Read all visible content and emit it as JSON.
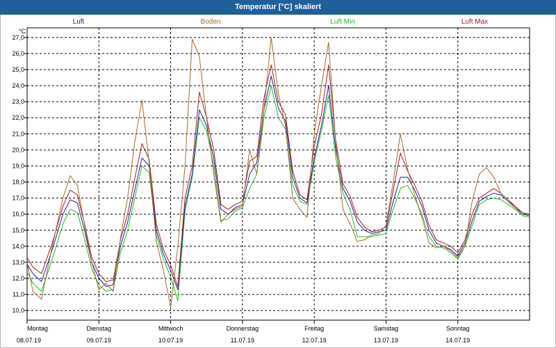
{
  "window": {
    "title": "Temperatur [°C] skaliert"
  },
  "chart_data": {
    "type": "line",
    "title": "Temperatur [°C] skaliert",
    "ylabel": "°C",
    "ylim": [
      9.4,
      27.6
    ],
    "yticks": [
      "10,0",
      "11,0",
      "12,0",
      "13,0",
      "14,0",
      "15,0",
      "16,0",
      "17,0",
      "18,0",
      "19,0",
      "20,0",
      "21,0",
      "22,0",
      "23,0",
      "24,0",
      "25,0",
      "26,0",
      "27,0"
    ],
    "x_range": [
      0,
      7
    ],
    "grid": true,
    "days": [
      {
        "day": "Montag",
        "date": "08.07.19"
      },
      {
        "day": "Dienstag",
        "date": "09.07.19"
      },
      {
        "day": "Mittwoch",
        "date": "10.07.19"
      },
      {
        "day": "Donnerstag",
        "date": "11.07.19"
      },
      {
        "day": "Freitag",
        "date": "12.07.19"
      },
      {
        "day": "Samstag",
        "date": "13.07.19"
      },
      {
        "day": "Sonntag",
        "date": "14.07.19"
      }
    ],
    "series": [
      {
        "name": "Luft",
        "color": "#1c1ca0",
        "x": [
          0,
          0.08,
          0.2,
          0.35,
          0.5,
          0.6,
          0.7,
          0.8,
          0.9,
          1.0,
          1.1,
          1.2,
          1.3,
          1.4,
          1.5,
          1.6,
          1.7,
          1.8,
          1.9,
          2.0,
          2.1,
          2.2,
          2.3,
          2.4,
          2.5,
          2.6,
          2.7,
          2.8,
          2.9,
          3.0,
          3.1,
          3.2,
          3.3,
          3.4,
          3.5,
          3.6,
          3.7,
          3.8,
          3.9,
          4.0,
          4.1,
          4.2,
          4.3,
          4.4,
          4.5,
          4.6,
          4.7,
          4.8,
          4.9,
          5.0,
          5.1,
          5.2,
          5.3,
          5.4,
          5.5,
          5.6,
          5.7,
          5.8,
          5.9,
          6.0,
          6.1,
          6.2,
          6.3,
          6.4,
          6.5,
          6.6,
          6.7,
          6.8,
          6.9,
          7.0
        ],
        "y": [
          12.9,
          12.3,
          11.8,
          13.8,
          16.0,
          16.9,
          16.7,
          15.0,
          13.0,
          12.0,
          11.5,
          11.6,
          14.0,
          15.5,
          17.5,
          19.5,
          19.0,
          15.0,
          13.5,
          12.5,
          11.3,
          16.5,
          18.5,
          22.5,
          21.5,
          19.5,
          16.3,
          16.0,
          16.4,
          16.6,
          18.5,
          19.2,
          22.5,
          24.6,
          22.6,
          21.8,
          18.3,
          17.0,
          16.7,
          19.5,
          21.5,
          24.0,
          20.0,
          17.6,
          16.8,
          15.5,
          15.0,
          14.8,
          14.9,
          15.0,
          16.8,
          18.3,
          18.3,
          17.5,
          16.5,
          15.0,
          14.2,
          14.0,
          13.8,
          13.4,
          14.2,
          15.6,
          16.8,
          17.1,
          17.3,
          17.2,
          16.8,
          16.4,
          16.0,
          15.9
        ]
      },
      {
        "name": "Boden",
        "color": "#a26a2e",
        "x": [
          0,
          0.08,
          0.2,
          0.35,
          0.5,
          0.6,
          0.7,
          0.8,
          0.9,
          1.0,
          1.1,
          1.2,
          1.3,
          1.4,
          1.5,
          1.6,
          1.7,
          1.8,
          1.9,
          2.0,
          2.1,
          2.2,
          2.3,
          2.4,
          2.5,
          2.6,
          2.7,
          2.8,
          2.9,
          3.0,
          3.1,
          3.2,
          3.3,
          3.4,
          3.5,
          3.6,
          3.7,
          3.8,
          3.9,
          4.0,
          4.1,
          4.2,
          4.3,
          4.4,
          4.5,
          4.6,
          4.7,
          4.8,
          4.9,
          5.0,
          5.1,
          5.2,
          5.3,
          5.4,
          5.5,
          5.6,
          5.7,
          5.8,
          5.9,
          6.0,
          6.1,
          6.2,
          6.3,
          6.4,
          6.5,
          6.6,
          6.7,
          6.8,
          6.9,
          7.0
        ],
        "y": [
          13.0,
          11.2,
          10.7,
          14.0,
          17.0,
          18.4,
          17.8,
          15.3,
          13.0,
          11.3,
          11.7,
          11.2,
          14.5,
          17.0,
          20.5,
          23.1,
          19.2,
          14.3,
          12.5,
          10.2,
          14.0,
          19.0,
          26.9,
          25.8,
          22.0,
          18.5,
          15.5,
          16.0,
          16.3,
          16.5,
          20.0,
          18.5,
          22.5,
          27.0,
          23.5,
          21.5,
          17.0,
          16.3,
          15.8,
          21.0,
          24.0,
          26.7,
          20.5,
          16.3,
          15.4,
          14.3,
          14.4,
          14.7,
          14.8,
          15.3,
          18.0,
          21.0,
          18.8,
          17.2,
          15.8,
          14.2,
          13.9,
          14.0,
          13.7,
          13.3,
          14.0,
          16.8,
          18.5,
          18.9,
          18.3,
          17.3,
          16.9,
          16.4,
          16.1,
          15.9
        ]
      },
      {
        "name": "Luft Min",
        "color": "#22bb22",
        "x": [
          0,
          0.08,
          0.2,
          0.35,
          0.5,
          0.6,
          0.7,
          0.8,
          0.9,
          1.0,
          1.1,
          1.2,
          1.3,
          1.4,
          1.5,
          1.6,
          1.7,
          1.8,
          1.9,
          2.0,
          2.1,
          2.2,
          2.3,
          2.4,
          2.5,
          2.6,
          2.7,
          2.8,
          2.9,
          3.0,
          3.1,
          3.2,
          3.3,
          3.4,
          3.5,
          3.6,
          3.7,
          3.8,
          3.9,
          4.0,
          4.1,
          4.2,
          4.3,
          4.4,
          4.5,
          4.6,
          4.7,
          4.8,
          4.9,
          5.0,
          5.1,
          5.2,
          5.3,
          5.4,
          5.5,
          5.6,
          5.7,
          5.8,
          5.9,
          6.0,
          6.1,
          6.2,
          6.3,
          6.4,
          6.5,
          6.6,
          6.7,
          6.8,
          6.9,
          7.0
        ],
        "y": [
          12.4,
          11.7,
          11.2,
          13.2,
          15.4,
          16.3,
          16.1,
          14.5,
          12.6,
          11.6,
          11.2,
          11.3,
          13.6,
          15.0,
          17.0,
          19.0,
          18.6,
          14.7,
          13.2,
          12.1,
          10.6,
          16.2,
          18.3,
          22.0,
          21.2,
          19.0,
          15.6,
          15.7,
          16.2,
          16.4,
          17.6,
          18.5,
          22.0,
          24.0,
          22.0,
          21.3,
          17.8,
          16.8,
          16.6,
          19.2,
          21.2,
          23.4,
          19.5,
          17.3,
          16.3,
          14.6,
          14.6,
          14.6,
          14.7,
          14.8,
          16.3,
          17.6,
          17.8,
          17.0,
          16.0,
          14.6,
          14.0,
          13.9,
          13.6,
          13.2,
          14.0,
          15.3,
          16.6,
          16.9,
          17.0,
          16.9,
          16.6,
          16.3,
          15.9,
          15.8
        ]
      },
      {
        "name": "Luft Max",
        "color": "#a01c1c",
        "x": [
          0,
          0.08,
          0.2,
          0.35,
          0.5,
          0.6,
          0.7,
          0.8,
          0.9,
          1.0,
          1.1,
          1.2,
          1.3,
          1.4,
          1.5,
          1.6,
          1.7,
          1.8,
          1.9,
          2.0,
          2.1,
          2.2,
          2.3,
          2.4,
          2.5,
          2.6,
          2.7,
          2.8,
          2.9,
          3.0,
          3.1,
          3.2,
          3.3,
          3.4,
          3.5,
          3.6,
          3.7,
          3.8,
          3.9,
          4.0,
          4.1,
          4.2,
          4.3,
          4.4,
          4.5,
          4.6,
          4.7,
          4.8,
          4.9,
          5.0,
          5.1,
          5.2,
          5.3,
          5.4,
          5.5,
          5.6,
          5.7,
          5.8,
          5.9,
          6.0,
          6.1,
          6.2,
          6.3,
          6.4,
          6.5,
          6.6,
          6.7,
          6.8,
          6.9,
          7.0
        ],
        "y": [
          13.3,
          12.7,
          12.3,
          14.2,
          16.5,
          17.5,
          17.2,
          15.4,
          13.3,
          12.3,
          11.8,
          11.9,
          14.4,
          16.0,
          18.2,
          20.4,
          19.4,
          15.4,
          13.8,
          12.8,
          11.5,
          17.0,
          19.0,
          23.6,
          22.0,
          20.0,
          16.6,
          16.3,
          16.6,
          16.8,
          19.3,
          19.6,
          23.2,
          25.3,
          23.0,
          22.2,
          18.7,
          17.2,
          16.9,
          20.2,
          22.2,
          25.3,
          20.6,
          17.9,
          17.1,
          15.8,
          15.2,
          14.9,
          15.0,
          15.2,
          17.5,
          19.8,
          18.7,
          17.8,
          16.8,
          15.3,
          14.4,
          14.2,
          14.0,
          13.6,
          14.4,
          16.0,
          17.0,
          17.3,
          17.6,
          17.3,
          16.9,
          16.5,
          16.1,
          16.0
        ]
      }
    ]
  }
}
